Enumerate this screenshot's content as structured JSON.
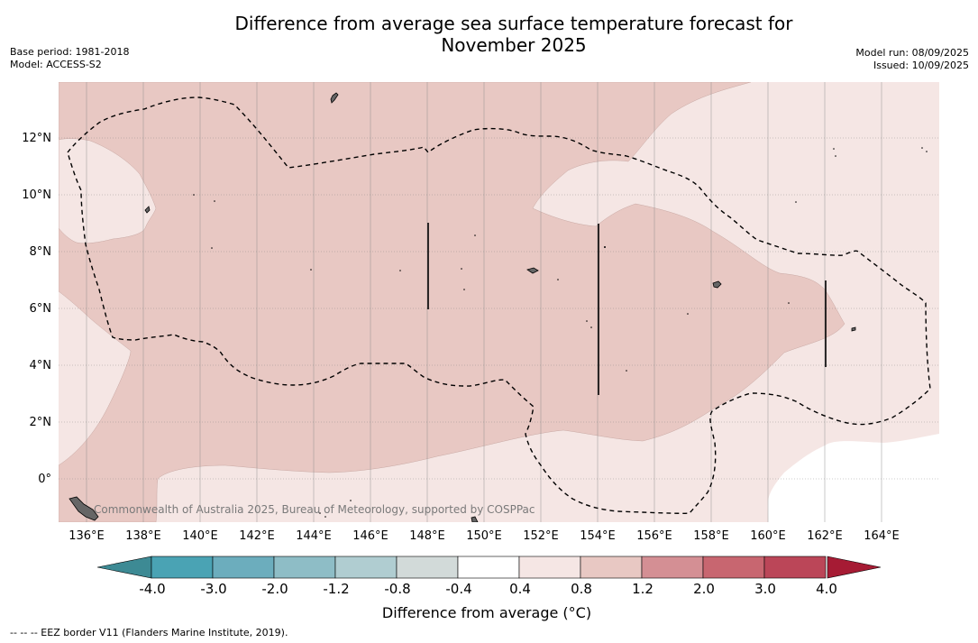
{
  "title_line1": "Difference from average sea surface temperature forecast for",
  "title_line2": "November 2025",
  "base_period": "Base period: 1981-2018",
  "model": "Model: ACCESS-S2",
  "model_run": "Model run: 08/09/2025",
  "issued": "Issued: 10/09/2025",
  "credit": "Commonwealth of Australia 2025, Bureau of Meteorology, supported by COSPPac",
  "footnote": "--  --  -- EEZ border V11 (Flanders Marine Institute, 2019).",
  "latitude_labels": [
    "12°N",
    "10°N",
    "8°N",
    "6°N",
    "4°N",
    "2°N",
    "0°"
  ],
  "longitude_labels": [
    "136°E",
    "138°E",
    "140°E",
    "142°E",
    "144°E",
    "146°E",
    "148°E",
    "150°E",
    "152°E",
    "154°E",
    "156°E",
    "158°E",
    "160°E",
    "162°E",
    "164°E"
  ],
  "colorbar": {
    "label": "Difference from average (°C)",
    "ticks": [
      "-4.0",
      "-3.0",
      "-2.0",
      "-1.2",
      "-0.8",
      "-0.4",
      "0.4",
      "0.8",
      "1.2",
      "2.0",
      "3.0",
      "4.0"
    ],
    "colors": [
      "#3d8a94",
      "#4aa3b4",
      "#6cadbd",
      "#8ebdc6",
      "#b0cdd1",
      "#d2dad9",
      "#ffffff",
      "#f5e6e4",
      "#e8c8c3",
      "#d48f94",
      "#c86670",
      "#bb4658",
      "#a61b34"
    ]
  },
  "legend_colors": {
    "category_0_4_to_0_8": "#f5e6e4",
    "category_0_8_to_1_2": "#e8c8c3",
    "category_minus_0_4_to_0_4": "#ffffff"
  }
}
